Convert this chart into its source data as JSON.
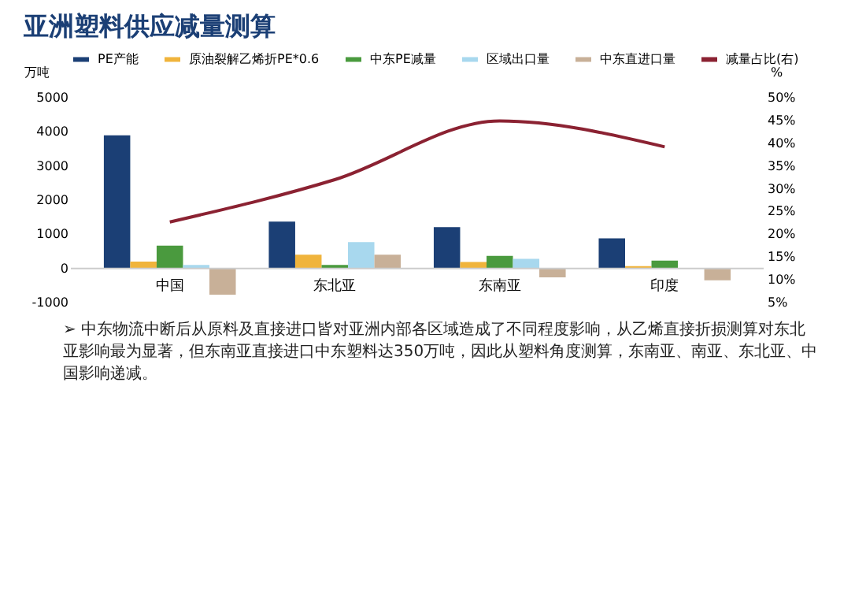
{
  "chart_data": {
    "type": "bar",
    "title": "亚洲塑料供应减量测算",
    "categories": [
      "中国",
      "东北亚",
      "东南亚",
      "印度"
    ],
    "series": [
      {
        "name": "PE产能",
        "color": "#1b3f75",
        "values": [
          3900,
          1370,
          1210,
          880
        ]
      },
      {
        "name": "原油裂解乙烯折PE*0.6",
        "color": "#f0b43c",
        "values": [
          200,
          400,
          190,
          70
        ]
      },
      {
        "name": "中东PE减量",
        "color": "#4a9a3e",
        "values": [
          670,
          100,
          370,
          230
        ]
      },
      {
        "name": "区域出口量",
        "color": "#a8d8ee",
        "values": [
          100,
          770,
          280,
          null
        ]
      },
      {
        "name": "中东直进口量",
        "color": "#c8b098",
        "values": [
          -770,
          400,
          -260,
          -350
        ]
      },
      {
        "name": "减量占比(右)",
        "type": "line",
        "axis": "y2",
        "color": "#8b2232",
        "values": [
          22.7,
          32,
          44.9,
          39.2
        ]
      }
    ],
    "ylabel": "万吨",
    "y2label": "%",
    "ylim": [
      -1000,
      5000
    ],
    "yticks": [
      -1000,
      0,
      1000,
      2000,
      3000,
      4000,
      5000
    ],
    "y2lim": [
      5,
      50
    ],
    "y2ticks": [
      {
        "value": 5,
        "label": "5%"
      },
      {
        "value": 10,
        "label": "10%"
      },
      {
        "value": 15,
        "label": "15%"
      },
      {
        "value": 20,
        "label": "20%"
      },
      {
        "value": 25,
        "label": "25%"
      },
      {
        "value": 30,
        "label": "30%"
      },
      {
        "value": 35,
        "label": "35%"
      },
      {
        "value": 40,
        "label": "40%"
      },
      {
        "value": 45,
        "label": "45%"
      },
      {
        "value": 50,
        "label": "50%"
      }
    ],
    "legend": "top",
    "grid": false,
    "annotations": [
      "➢ 中东物流中断后从原料及直接进口皆对亚洲内部各区域造成了不同程度影响，从乙烯直接折损测算对东北亚影响最为显著，但东南亚直接进口中东塑料达350万吨，因此从塑料角度测算，东南亚、南亚、东北亚、中国影响递减。"
    ]
  }
}
